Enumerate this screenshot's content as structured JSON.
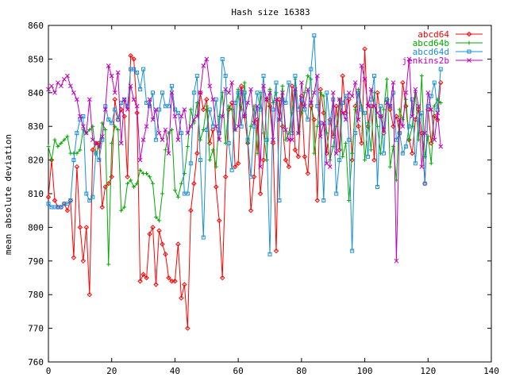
{
  "chart_data": {
    "type": "line",
    "title": "Hash size 16383",
    "xlabel": "",
    "ylabel": "mean absolute deviation",
    "xlim": [
      0,
      140
    ],
    "ylim": [
      760,
      860
    ],
    "xticks": [
      0,
      20,
      40,
      60,
      80,
      100,
      120,
      140
    ],
    "yticks": [
      760,
      770,
      780,
      790,
      800,
      810,
      820,
      830,
      840,
      850,
      860
    ],
    "grid": false,
    "legend_position": "top-right",
    "x_start": 0,
    "series": [
      {
        "name": "abcd64",
        "color": "#ff0000",
        "marker": "diamond",
        "values": [
          809,
          820,
          808,
          806,
          806,
          807,
          805,
          808,
          791,
          818,
          800,
          790,
          800,
          780,
          823,
          825,
          825,
          806,
          812,
          813,
          815,
          838,
          832,
          835,
          833,
          815,
          851,
          850,
          834,
          784,
          786,
          785,
          798,
          800,
          783,
          799,
          795,
          792,
          785,
          784,
          784,
          795,
          779,
          783,
          770,
          805,
          813,
          822,
          840,
          835,
          838,
          825,
          829,
          812,
          802,
          785,
          815,
          835,
          837,
          818,
          819,
          842,
          833,
          825,
          805,
          815,
          832,
          810,
          820,
          838,
          836,
          825,
          793,
          838,
          830,
          820,
          818,
          842,
          823,
          821,
          839,
          821,
          816,
          836,
          832,
          808,
          841,
          834,
          822,
          832,
          827,
          836,
          823,
          845,
          834,
          838,
          820,
          836,
          830,
          825,
          853,
          830,
          836,
          820,
          840,
          833,
          828,
          838,
          835,
          830,
          833,
          828,
          843,
          836,
          826,
          822,
          832,
          835,
          828,
          813,
          835,
          825,
          833,
          832,
          843
        ]
      },
      {
        "name": "abcd64b",
        "color": "#00aa00",
        "marker": "plus",
        "values": [
          824,
          820,
          826,
          824,
          825,
          826,
          827,
          822,
          822,
          822,
          823,
          829,
          828,
          829,
          830,
          822,
          824,
          831,
          829,
          789,
          825,
          830,
          829,
          805,
          806,
          813,
          814,
          812,
          813,
          817,
          816,
          816,
          815,
          813,
          803,
          802,
          810,
          823,
          828,
          829,
          811,
          809,
          813,
          816,
          824,
          835,
          831,
          837,
          826,
          829,
          836,
          820,
          823,
          818,
          833,
          840,
          825,
          836,
          835,
          829,
          841,
          835,
          843,
          825,
          830,
          836,
          822,
          840,
          828,
          820,
          841,
          837,
          840,
          832,
          842,
          826,
          828,
          834,
          844,
          828,
          834,
          840,
          845,
          844,
          822,
          830,
          840,
          839,
          828,
          820,
          824,
          830,
          838,
          821,
          825,
          808,
          822,
          835,
          841,
          836,
          820,
          831,
          823,
          840,
          830,
          822,
          835,
          844,
          818,
          824,
          814,
          835,
          832,
          838,
          826,
          830,
          840,
          826,
          845,
          821,
          827,
          819,
          836,
          838,
          837
        ]
      },
      {
        "name": "abcd64d",
        "color": "#1a8fd9",
        "marker": "square",
        "values": [
          807,
          806,
          806,
          806,
          806,
          807,
          807,
          808,
          820,
          828,
          832,
          833,
          810,
          808,
          809,
          822,
          820,
          826,
          836,
          832,
          831,
          835,
          832,
          837,
          838,
          836,
          847,
          847,
          846,
          841,
          847,
          837,
          836,
          840,
          826,
          835,
          840,
          836,
          836,
          842,
          835,
          834,
          828,
          810,
          810,
          819,
          840,
          845,
          820,
          797,
          829,
          835,
          830,
          838,
          828,
          850,
          845,
          825,
          817,
          837,
          840,
          830,
          840,
          826,
          815,
          830,
          840,
          835,
          845,
          826,
          792,
          835,
          843,
          808,
          838,
          837,
          843,
          828,
          845,
          835,
          838,
          835,
          832,
          847,
          857,
          836,
          831,
          808,
          840,
          831,
          838,
          810,
          820,
          837,
          839,
          826,
          793,
          828,
          840,
          835,
          834,
          821,
          838,
          845,
          812,
          836,
          822,
          838,
          836,
          840,
          826,
          828,
          822,
          824,
          830,
          838,
          819,
          832,
          834,
          813,
          836,
          839,
          843,
          835,
          847
        ]
      },
      {
        "name": "jenkins2b",
        "color": "#bf00bf",
        "marker": "cross",
        "values": [
          841,
          842,
          840,
          843,
          842,
          844,
          845,
          842,
          840,
          838,
          833,
          830,
          828,
          838,
          826,
          825,
          824,
          827,
          835,
          848,
          845,
          840,
          846,
          825,
          838,
          835,
          842,
          838,
          836,
          820,
          826,
          830,
          838,
          832,
          835,
          828,
          826,
          829,
          822,
          840,
          833,
          826,
          833,
          835,
          828,
          830,
          832,
          833,
          840,
          848,
          850,
          842,
          838,
          830,
          826,
          833,
          841,
          840,
          843,
          829,
          830,
          841,
          833,
          837,
          841,
          831,
          836,
          818,
          842,
          838,
          840,
          826,
          838,
          832,
          840,
          829,
          826,
          826,
          841,
          828,
          843,
          836,
          841,
          837,
          840,
          845,
          827,
          831,
          819,
          818,
          840,
          822,
          838,
          834,
          832,
          840,
          839,
          843,
          832,
          848,
          844,
          836,
          841,
          836,
          834,
          833,
          829,
          837,
          836,
          843,
          790,
          832,
          830,
          840,
          850,
          833,
          841,
          836,
          818,
          828,
          840,
          835,
          826,
          834,
          824
        ]
      }
    ]
  }
}
